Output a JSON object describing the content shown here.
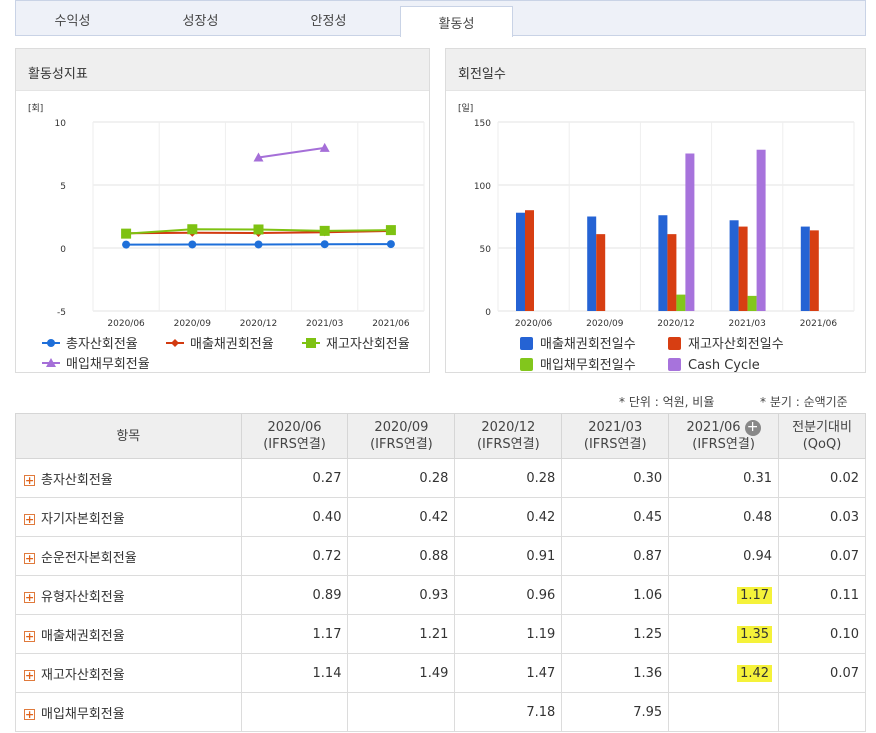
{
  "tabs": [
    "수익성",
    "성장성",
    "안정성",
    "활동성"
  ],
  "left_panel": {
    "title": "활동성지표",
    "unit": "[회]",
    "legend": [
      "총자산회전율",
      "매출채권회전율",
      "재고자산회전율",
      "매입채무회전율"
    ]
  },
  "right_panel": {
    "title": "회전일수",
    "unit": "[일]",
    "legend": [
      "매출채권회전일수",
      "재고자산회전일수",
      "매입채무회전일수",
      "Cash Cycle"
    ]
  },
  "chart_data": [
    {
      "type": "line",
      "categories": [
        "2020/06",
        "2020/09",
        "2020/12",
        "2021/03",
        "2021/06"
      ],
      "ylim": [
        -5,
        10
      ],
      "yticks": [
        10,
        5,
        0,
        -5
      ],
      "series": [
        {
          "name": "총자산회전율",
          "color": "#1e6fd9",
          "values": [
            0.27,
            0.28,
            0.28,
            0.3,
            0.31
          ]
        },
        {
          "name": "매출채권회전율",
          "color": "#d23a10",
          "values": [
            1.17,
            1.21,
            1.19,
            1.25,
            1.35
          ]
        },
        {
          "name": "재고자산회전율",
          "color": "#7ec212",
          "values": [
            1.14,
            1.49,
            1.47,
            1.36,
            1.42
          ]
        },
        {
          "name": "매입채무회전율",
          "color": "#a56fd8",
          "values": [
            null,
            null,
            7.18,
            7.95,
            null
          ]
        }
      ]
    },
    {
      "type": "bar",
      "categories": [
        "2020/06",
        "2020/09",
        "2020/12",
        "2021/03",
        "2021/06"
      ],
      "ylim": [
        0,
        150
      ],
      "yticks": [
        150,
        100,
        50,
        0
      ],
      "series": [
        {
          "name": "매출채권회전일수",
          "color": "#2563d4",
          "values": [
            78,
            75,
            76,
            72,
            67
          ]
        },
        {
          "name": "재고자산회전일수",
          "color": "#d73e12",
          "values": [
            80,
            61,
            61,
            67,
            64
          ]
        },
        {
          "name": "매입채무회전일수",
          "color": "#82c61c",
          "values": [
            null,
            null,
            13,
            12,
            null
          ]
        },
        {
          "name": "Cash Cycle",
          "color": "#a773dc",
          "values": [
            null,
            null,
            125,
            128,
            null
          ]
        }
      ]
    }
  ],
  "notes": {
    "unit": "* 단위 : 억원, 비율",
    "quarter": "* 분기 : 순액기준"
  },
  "table": {
    "header_first": "항목",
    "periods": [
      {
        "date": "2020/06",
        "basis": "(IFRS연결)"
      },
      {
        "date": "2020/09",
        "basis": "(IFRS연결)"
      },
      {
        "date": "2020/12",
        "basis": "(IFRS연결)"
      },
      {
        "date": "2021/03",
        "basis": "(IFRS연결)"
      },
      {
        "date": "2021/06",
        "basis": "(IFRS연결)"
      }
    ],
    "qoq_label": "전분기대비",
    "qoq_sub": "(QoQ)",
    "expand_icon": "+",
    "rows": [
      {
        "name": "총자산회전율",
        "values": [
          "0.27",
          "0.28",
          "0.28",
          "0.30",
          "0.31"
        ],
        "qoq": "0.02"
      },
      {
        "name": "자기자본회전율",
        "values": [
          "0.40",
          "0.42",
          "0.42",
          "0.45",
          "0.48"
        ],
        "qoq": "0.03"
      },
      {
        "name": "순운전자본회전율",
        "values": [
          "0.72",
          "0.88",
          "0.91",
          "0.87",
          "0.94"
        ],
        "qoq": "0.07"
      },
      {
        "name": "유형자산회전율",
        "values": [
          "0.89",
          "0.93",
          "0.96",
          "1.06",
          "1.17"
        ],
        "qoq": "0.11"
      },
      {
        "name": "매출채권회전율",
        "values": [
          "1.17",
          "1.21",
          "1.19",
          "1.25",
          "1.35"
        ],
        "qoq": "0.10"
      },
      {
        "name": "재고자산회전율",
        "values": [
          "1.14",
          "1.49",
          "1.47",
          "1.36",
          "1.42"
        ],
        "qoq": "0.07"
      },
      {
        "name": "매입채무회전율",
        "values": [
          "",
          "",
          "7.18",
          "7.95",
          ""
        ],
        "qoq": ""
      }
    ]
  }
}
